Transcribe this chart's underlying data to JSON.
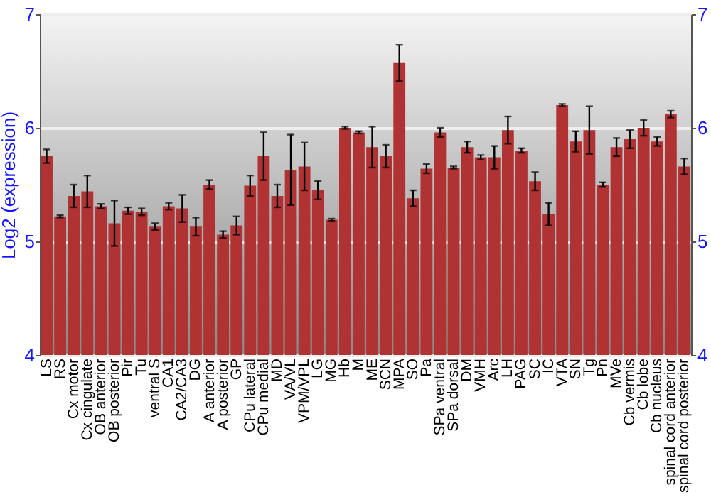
{
  "chart_data": {
    "type": "bar",
    "ylabel": "Log2 (expression)",
    "categories": [
      "LS",
      "RS",
      "Cx motor",
      "Cx cingulate",
      "OB anterior",
      "OB posterior",
      "Pir",
      "Tu",
      "ventral S",
      "CA1",
      "CA2/CA3",
      "DG",
      "A anterior",
      "A posterior",
      "GP",
      "CPu lateral",
      "CPu medial",
      "MD",
      "VA/VL",
      "VPM/VPL",
      "LG",
      "MG",
      "Hb",
      "M",
      "ME",
      "SCN",
      "MPA",
      "SO",
      "Pa",
      "SPa ventral",
      "SPa dorsal",
      "DM",
      "VMH",
      "Arc",
      "LH",
      "PAG",
      "SC",
      "IC",
      "VTA",
      "SN",
      "Tg",
      "Pn",
      "MVe",
      "Cb vermis",
      "Cb lobe",
      "Cb nucleus",
      "spinal cord anterior",
      "spinal cord posterior"
    ],
    "series": [
      {
        "color": "#b03232",
        "values": [
          5.75,
          5.22,
          5.4,
          5.44,
          5.31,
          5.16,
          5.27,
          5.26,
          5.13,
          5.31,
          5.29,
          5.13,
          5.5,
          5.06,
          5.14,
          5.49,
          5.75,
          5.4,
          5.63,
          5.66,
          5.45,
          5.19,
          6.0,
          5.96,
          5.83,
          5.75,
          6.57,
          5.38,
          5.64,
          5.96,
          5.65,
          5.83,
          5.74,
          5.74,
          5.98,
          5.8,
          5.53,
          5.24,
          6.2,
          5.88,
          5.98,
          5.5,
          5.83,
          5.9,
          6.0,
          5.88,
          6.12,
          5.66
        ],
        "errors": [
          0.06,
          0.01,
          0.1,
          0.14,
          0.02,
          0.2,
          0.03,
          0.03,
          0.03,
          0.03,
          0.12,
          0.08,
          0.04,
          0.03,
          0.08,
          0.09,
          0.21,
          0.1,
          0.31,
          0.21,
          0.08,
          0.01,
          0.01,
          0.01,
          0.18,
          0.1,
          0.16,
          0.07,
          0.04,
          0.04,
          0.01,
          0.05,
          0.02,
          0.1,
          0.12,
          0.02,
          0.08,
          0.1,
          0.01,
          0.09,
          0.21,
          0.02,
          0.08,
          0.08,
          0.07,
          0.04,
          0.03,
          0.07
        ]
      }
    ],
    "ylim": [
      4,
      7
    ],
    "yticks": [
      4,
      5,
      6,
      7
    ],
    "y2lim": [
      4,
      7
    ],
    "y2ticks": [
      4,
      5,
      6,
      7
    ],
    "grid": "y"
  }
}
